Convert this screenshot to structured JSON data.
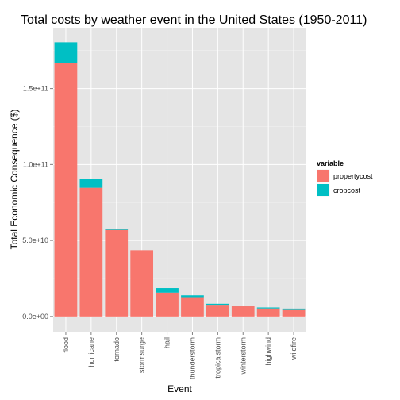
{
  "chart_data": {
    "type": "bar",
    "stacked": true,
    "title": "Total costs by weather event in the United States (1950-2011)",
    "xlabel": "Event",
    "ylabel": "Total Economic Consequence ($)",
    "categories": [
      "flood",
      "hurricane",
      "tornado",
      "stormsurge",
      "hail",
      "thunderstorm",
      "tropicalstorm",
      "winterstorm",
      "highwind",
      "wildfire"
    ],
    "series": [
      {
        "name": "propertycost",
        "color": "#F8766D",
        "values": [
          167000000000.0,
          84700000000.0,
          57000000000.0,
          43600000000.0,
          15700000000.0,
          12700000000.0,
          7700000000.0,
          6700000000.0,
          5300000000.0,
          4800000000.0
        ]
      },
      {
        "name": "cropcost",
        "color": "#00BFC4",
        "values": [
          13400000000.0,
          5800000000.0,
          400000000.0,
          0,
          3000000000.0,
          1200000000.0,
          670000000.0,
          30000000.0,
          640000000.0,
          400000000.0
        ]
      }
    ],
    "ylim": [
      -10000000000.0,
      190000000000.0
    ],
    "yticks": [
      0,
      50000000000.0,
      100000000000.0,
      150000000000.0
    ],
    "ytick_labels": [
      "0.0e+00",
      "5.0e+10",
      "1.0e+11",
      "1.5e+11"
    ],
    "legend": {
      "title": "variable",
      "position": "right"
    },
    "grid": true,
    "background": "#E5E5E5"
  }
}
